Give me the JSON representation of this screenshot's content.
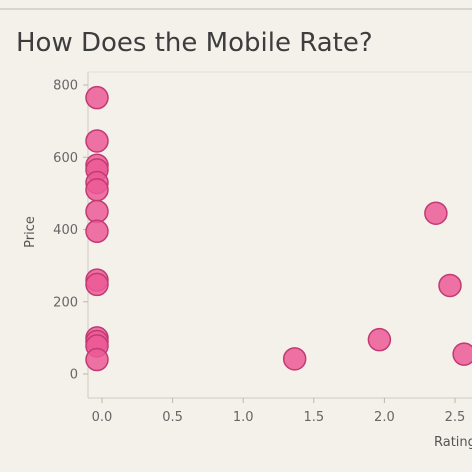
{
  "chart_data": {
    "type": "scatter",
    "title": "How Does the Mobile Rate?",
    "xlabel": "Rating",
    "ylabel": "Price",
    "x_ticks": [
      "0.0",
      "0.5",
      "1.0",
      "1.5",
      "2.0",
      "2.5"
    ],
    "y_ticks": [
      "0",
      "200",
      "400",
      "600",
      "800"
    ],
    "xlim": [
      -0.05,
      2.6
    ],
    "ylim": [
      -60,
      820
    ],
    "grid": false,
    "marker_color": "#ec5a96",
    "marker_edge_color": "#c23a72",
    "points": [
      {
        "x": 0.0,
        "y": 765
      },
      {
        "x": 0.0,
        "y": 645
      },
      {
        "x": 0.0,
        "y": 578
      },
      {
        "x": 0.0,
        "y": 565
      },
      {
        "x": 0.0,
        "y": 530
      },
      {
        "x": 0.0,
        "y": 510
      },
      {
        "x": 0.0,
        "y": 450
      },
      {
        "x": 0.0,
        "y": 395
      },
      {
        "x": 0.0,
        "y": 260
      },
      {
        "x": 0.0,
        "y": 248
      },
      {
        "x": 0.0,
        "y": 100
      },
      {
        "x": 0.0,
        "y": 90
      },
      {
        "x": 0.0,
        "y": 78
      },
      {
        "x": 0.0,
        "y": 40
      },
      {
        "x": 1.4,
        "y": 42
      },
      {
        "x": 2.0,
        "y": 95
      },
      {
        "x": 2.4,
        "y": 445
      },
      {
        "x": 2.5,
        "y": 245
      },
      {
        "x": 2.6,
        "y": 55
      }
    ]
  }
}
